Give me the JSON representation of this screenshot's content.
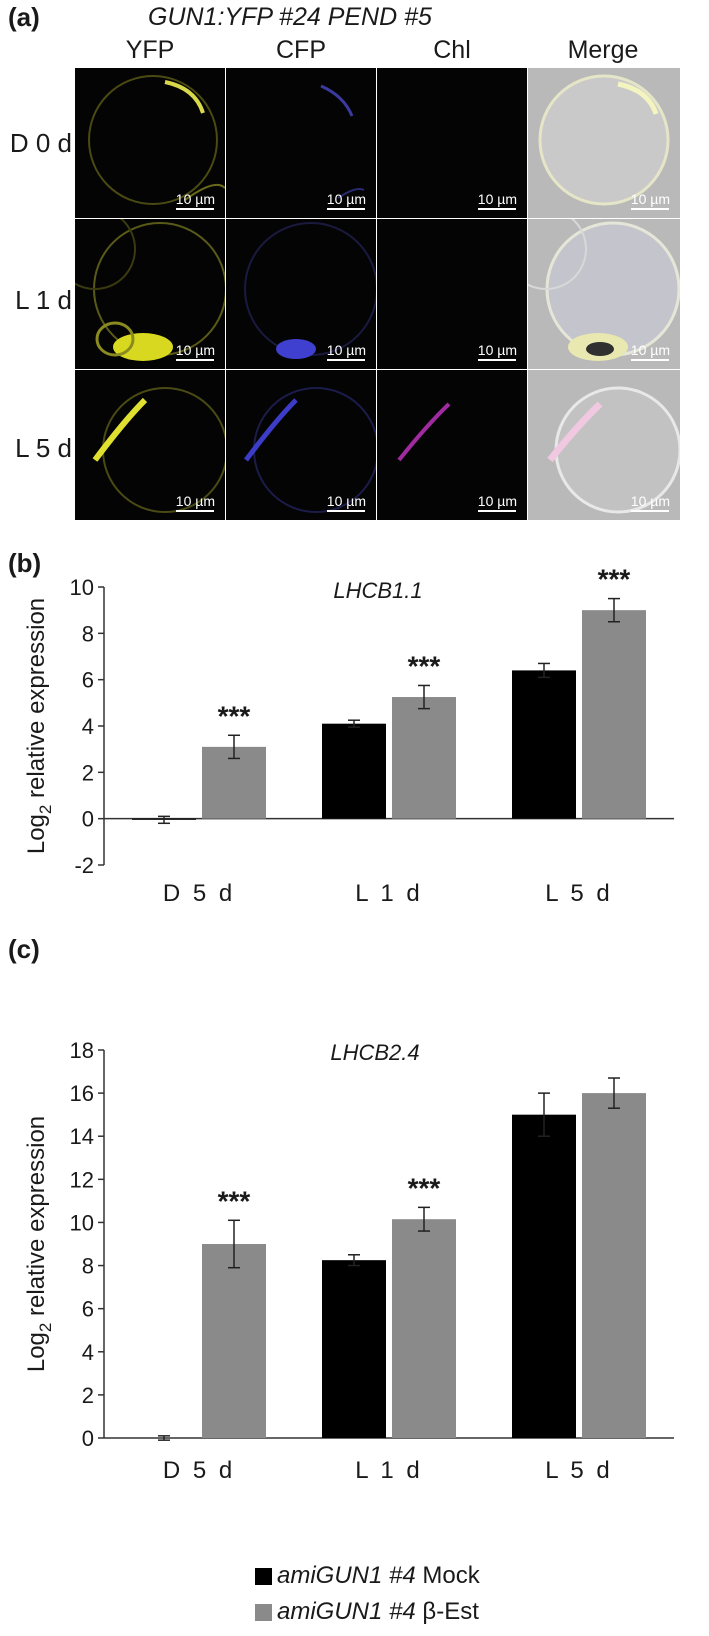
{
  "panel_a": {
    "letter": "(a)",
    "title": "GUN1:YFP #24 PEND #5",
    "columns": [
      "YFP",
      "CFP",
      "Chl",
      "Merge"
    ],
    "rows": [
      "D 0 d",
      "L 1 d",
      "L 5 d"
    ],
    "scale_bar": "10 µm"
  },
  "panel_b": {
    "letter": "(b)"
  },
  "panel_c": {
    "letter": "(c)"
  },
  "legend": {
    "mock": {
      "prefix": "amiGUN1 #4",
      "suffix": "Mock",
      "color": "#000000"
    },
    "est": {
      "prefix": "amiGUN1 #4",
      "suffix": "β-Est",
      "color": "#8a8a8a"
    }
  },
  "chart_data": [
    {
      "type": "bar",
      "title": "LHCB1.1",
      "ylabel": "Log2 relative expression",
      "categories": [
        "D 5 d",
        "L 1 d",
        "L 5 d"
      ],
      "ylim": [
        -2,
        10
      ],
      "yticks": [
        -2,
        0,
        2,
        4,
        6,
        8,
        10
      ],
      "series": [
        {
          "name": "amiGUN1 #4 Mock",
          "color": "#000000",
          "values": [
            -0.05,
            4.1,
            6.4
          ],
          "errors": [
            0.15,
            0.15,
            0.3
          ]
        },
        {
          "name": "amiGUN1 #4 β-Est",
          "color": "#8a8a8a",
          "values": [
            3.1,
            5.25,
            9.0
          ],
          "errors": [
            0.5,
            0.5,
            0.5
          ]
        }
      ],
      "annotations": [
        {
          "category": "D 5 d",
          "series": 1,
          "text": "***"
        },
        {
          "category": "L 1 d",
          "series": 1,
          "text": "***"
        },
        {
          "category": "L 5 d",
          "series": 1,
          "text": "***"
        }
      ],
      "legend": "bottom",
      "grid": false
    },
    {
      "type": "bar",
      "title": "LHCB2.4",
      "ylabel": "Log2 relative expression",
      "categories": [
        "D 5 d",
        "L 1 d",
        "L 5 d"
      ],
      "ylim": [
        0,
        18
      ],
      "yticks": [
        0,
        2,
        4,
        6,
        8,
        10,
        12,
        14,
        16,
        18
      ],
      "series": [
        {
          "name": "amiGUN1 #4 Mock",
          "color": "#000000",
          "values": [
            0.0,
            8.25,
            15.0
          ],
          "errors": [
            0.1,
            0.25,
            1.0
          ]
        },
        {
          "name": "amiGUN1 #4 β-Est",
          "color": "#8a8a8a",
          "values": [
            9.0,
            10.15,
            16.0
          ],
          "errors": [
            1.1,
            0.55,
            0.7
          ]
        }
      ],
      "annotations": [
        {
          "category": "D 5 d",
          "series": 1,
          "text": "***"
        },
        {
          "category": "L 1 d",
          "series": 1,
          "text": "***"
        }
      ],
      "legend": "bottom",
      "grid": false
    }
  ]
}
